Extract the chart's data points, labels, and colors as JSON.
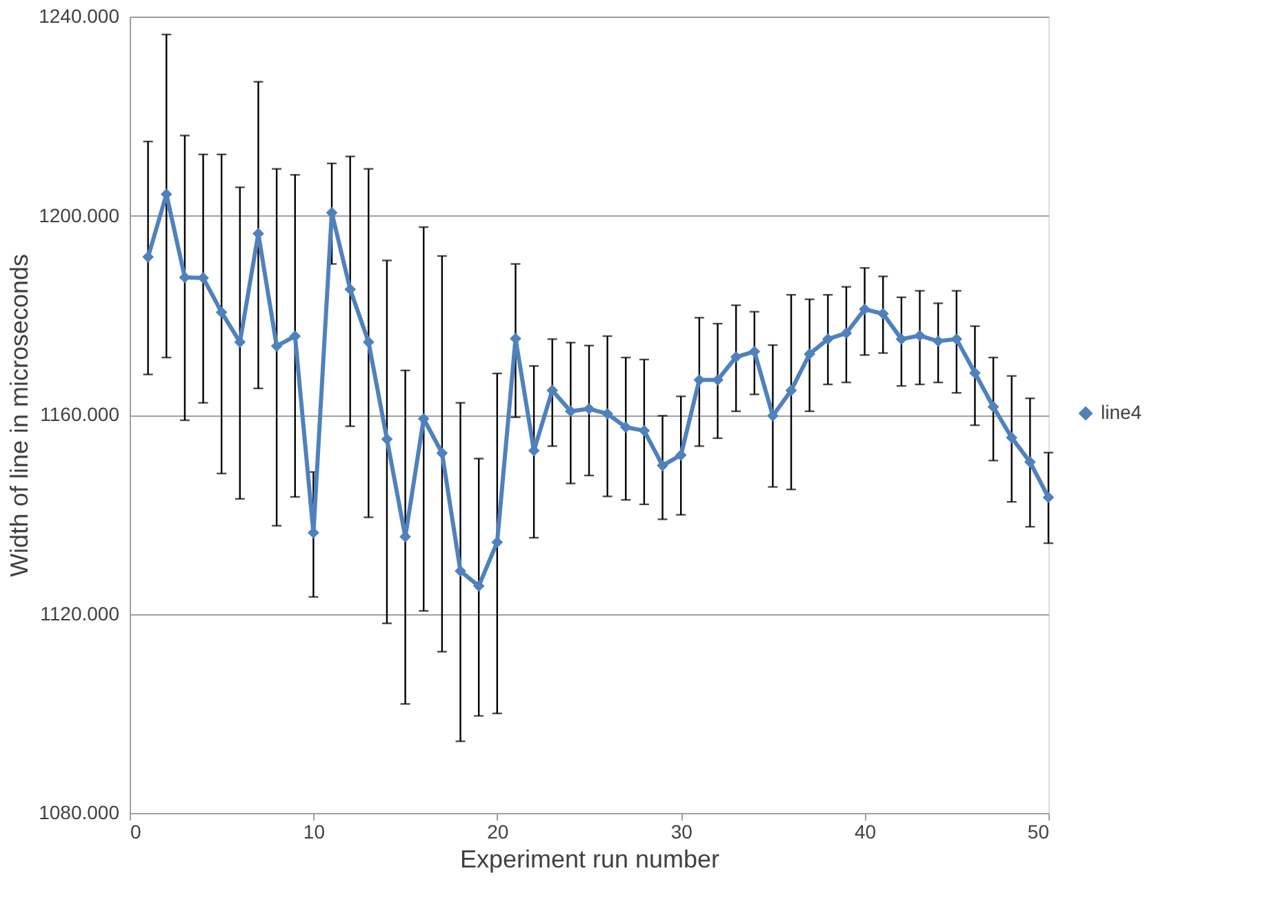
{
  "chart_data": {
    "type": "line",
    "xlabel": "Experiment run number",
    "ylabel": "Width of line in microseconds",
    "x": [
      1,
      2,
      3,
      4,
      5,
      6,
      7,
      8,
      9,
      10,
      11,
      12,
      13,
      14,
      15,
      16,
      17,
      18,
      19,
      20,
      21,
      22,
      23,
      24,
      25,
      26,
      27,
      28,
      29,
      30,
      31,
      32,
      33,
      34,
      35,
      36,
      37,
      38,
      39,
      40,
      41,
      42,
      43,
      44,
      45,
      46,
      47,
      48,
      49,
      50
    ],
    "series": [
      {
        "name": "line4",
        "color": "#4f81bd",
        "values": [
          1191.7,
          1204.3,
          1187.6,
          1187.5,
          1180.6,
          1174.6,
          1196.4,
          1173.8,
          1175.8,
          1136.3,
          1200.6,
          1185.2,
          1174.6,
          1155.1,
          1135.5,
          1159.2,
          1152.3,
          1128.6,
          1125.6,
          1134.4,
          1175.3,
          1152.8,
          1164.9,
          1160.7,
          1161.2,
          1160.2,
          1157.5,
          1156.8,
          1149.8,
          1151.9,
          1167.0,
          1167.0,
          1171.6,
          1172.7,
          1159.8,
          1164.9,
          1172.2,
          1175.2,
          1176.4,
          1181.2,
          1180.3,
          1175.2,
          1175.9,
          1174.8,
          1175.2,
          1168.4,
          1161.6,
          1155.4,
          1150.5,
          1143.4
        ],
        "errors": [
          [
            1168.1,
            1214.9
          ],
          [
            1171.5,
            1236.4
          ],
          [
            1158.9,
            1216.1
          ],
          [
            1162.4,
            1212.3
          ],
          [
            1148.2,
            1212.3
          ],
          [
            1143.1,
            1205.7
          ],
          [
            1165.3,
            1226.9
          ],
          [
            1137.7,
            1209.4
          ],
          [
            1143.5,
            1208.2
          ],
          [
            1123.4,
            1148.5
          ],
          [
            1190.3,
            1210.5
          ],
          [
            1157.7,
            1211.9
          ],
          [
            1139.4,
            1209.4
          ],
          [
            1118.1,
            1191.0
          ],
          [
            1101.9,
            1168.9
          ],
          [
            1120.6,
            1197.7
          ],
          [
            1112.4,
            1191.9
          ],
          [
            1094.4,
            1162.4
          ],
          [
            1099.5,
            1151.2
          ],
          [
            1100.0,
            1168.3
          ],
          [
            1159.5,
            1190.3
          ],
          [
            1135.3,
            1169.8
          ],
          [
            1153.7,
            1175.2
          ],
          [
            1146.2,
            1174.5
          ],
          [
            1147.8,
            1173.9
          ],
          [
            1143.6,
            1175.8
          ],
          [
            1142.9,
            1171.5
          ],
          [
            1142.0,
            1171.1
          ],
          [
            1139.0,
            1159.8
          ],
          [
            1139.9,
            1163.7
          ],
          [
            1153.7,
            1179.5
          ],
          [
            1155.3,
            1178.3
          ],
          [
            1160.7,
            1182.0
          ],
          [
            1164.1,
            1180.7
          ],
          [
            1145.5,
            1174.0
          ],
          [
            1145.0,
            1184.1
          ],
          [
            1160.7,
            1183.2
          ],
          [
            1166.1,
            1184.1
          ],
          [
            1166.5,
            1185.7
          ],
          [
            1172.0,
            1189.5
          ],
          [
            1172.4,
            1187.8
          ],
          [
            1165.8,
            1183.6
          ],
          [
            1166.1,
            1184.9
          ],
          [
            1166.5,
            1182.4
          ],
          [
            1164.4,
            1184.9
          ],
          [
            1157.9,
            1177.8
          ],
          [
            1150.8,
            1171.5
          ],
          [
            1142.5,
            1167.8
          ],
          [
            1137.5,
            1163.3
          ],
          [
            1134.2,
            1152.4
          ]
        ]
      }
    ],
    "xlim": [
      0,
      50
    ],
    "xticks": [
      0,
      10,
      20,
      30,
      40,
      50
    ],
    "ylim": [
      1080,
      1240
    ],
    "yticks": [
      {
        "value": 1080,
        "label": "1080.000"
      },
      {
        "value": 1120,
        "label": "1120.000"
      },
      {
        "value": 1160,
        "label": "1160.000"
      },
      {
        "value": 1200,
        "label": "1200.000"
      },
      {
        "value": 1240,
        "label": "1240.000"
      }
    ],
    "grid": "y",
    "legend": "right",
    "marker": "diamond",
    "line_style": "solid"
  }
}
